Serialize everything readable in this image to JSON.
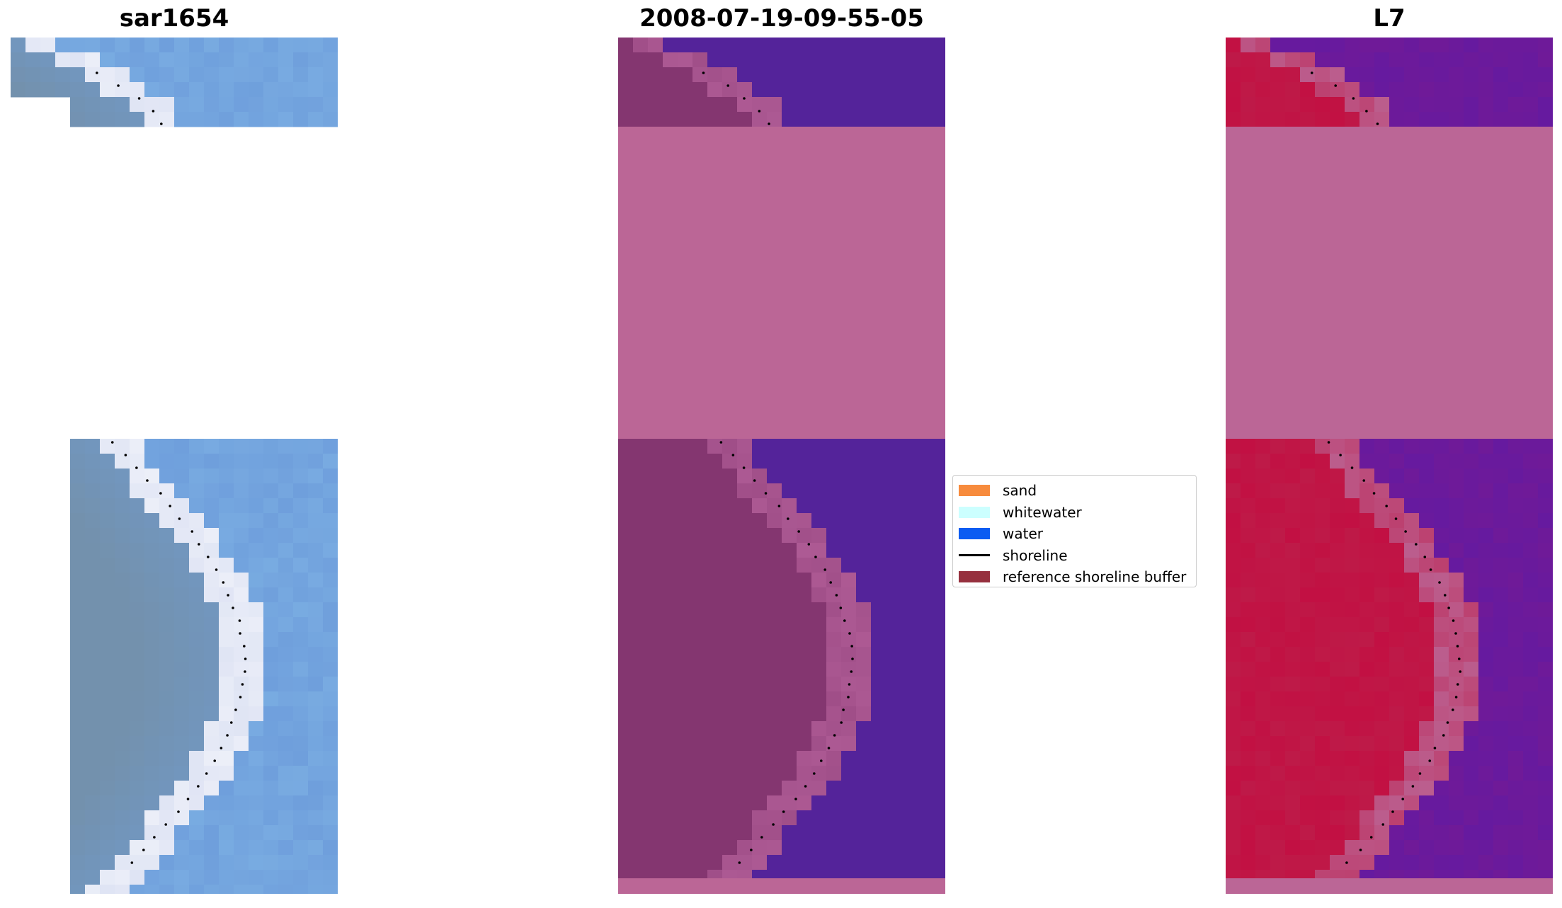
{
  "titles": {
    "left": "sar1654",
    "center": "2008-07-19-09-55-05",
    "right": "L7"
  },
  "legend": {
    "items": [
      {
        "label": "sand",
        "color": "#f78b3d",
        "kind": "patch"
      },
      {
        "label": "whitewater",
        "color": "#ccffff",
        "kind": "patch"
      },
      {
        "label": "water",
        "color": "#0b5cf2",
        "kind": "patch"
      },
      {
        "label": "shoreline",
        "color": "#000000",
        "kind": "line"
      },
      {
        "label": "reference shoreline buffer",
        "color": "#96303e",
        "kind": "patch"
      }
    ]
  },
  "colors": {
    "background": "#ffffff",
    "rgb_water": "#6f9fdc",
    "rgb_land": "#7391ad",
    "rgb_surf": "#dfe4f4",
    "class_water": "#54239a",
    "class_land": "#843670",
    "class_buffer_mask": "#bb6696",
    "class_transition": "#b25e98",
    "mndwi_water": "#6f1a98",
    "mndwi_land": "#be1a48",
    "mndwi_buffer_mask": "#bb6696"
  }
}
